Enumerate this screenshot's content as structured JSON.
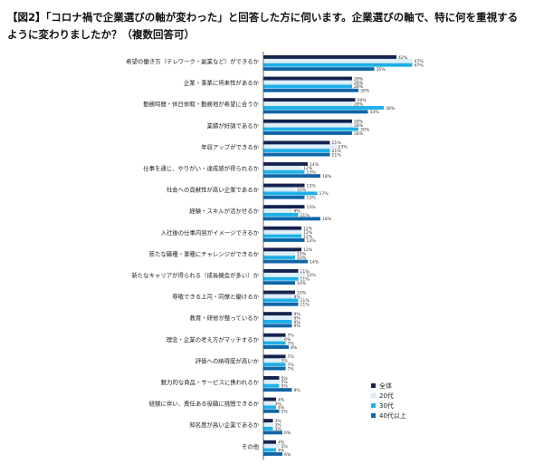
{
  "title": "【図2】「コロナ禍で企業選びの軸が変わった」と回答した方に伺います。企業選びの軸で、特に何を重視するように変わりましたか？（複数回答可）",
  "colors": {
    "全体": "#16234f",
    "20代": "#dff0fa",
    "30代": "#1fb0e8",
    "40代以上": "#0f66a8"
  },
  "chart_data": {
    "type": "bar",
    "orientation": "horizontal",
    "categories": [
      "希望の働き方（テレワーク・副業など）ができるか",
      "企業・事業に将来性があるか",
      "勤務時間・休日休暇・勤務地が希望に合うか",
      "業績が好調であるか",
      "年収アップができるか",
      "仕事を通じ、やりがい・達成感が得られるか",
      "社会への貢献性が高い企業であるか",
      "経験・スキルが活かせるか",
      "入社後の仕事内容がイメージできるか",
      "新たな職種・業種にチャレンジができるか",
      "新たなキャリアが得られる（成長機会が多い）か",
      "尊敬できる上司・同僚と働けるか",
      "教育・研修が整っているか",
      "理念・企業の考え方がマッチするか",
      "評価への納得度が高いか",
      "魅力的な商品・サービスに携われるか",
      "経験に伴い、責任ある役職に挑戦できるか",
      "知名度が高い企業であるか",
      "その他"
    ],
    "series": [
      {
        "name": "全体",
        "values": [
          42,
          28,
          29,
          28,
          21,
          14,
          13,
          13,
          12,
          12,
          11,
          10,
          9,
          7,
          7,
          5,
          4,
          3,
          4
        ]
      },
      {
        "name": "20代",
        "values": [
          47,
          28,
          28,
          28,
          23,
          12,
          10,
          9,
          12,
          10,
          13,
          9,
          9,
          6,
          5,
          5,
          3,
          3,
          5
        ]
      },
      {
        "name": "30代",
        "values": [
          47,
          28,
          38,
          30,
          21,
          13,
          17,
          11,
          12,
          10,
          11,
          11,
          9,
          7,
          7,
          5,
          4,
          3,
          4
        ]
      },
      {
        "name": "40代以上",
        "values": [
          35,
          30,
          33,
          28,
          21,
          18,
          13,
          18,
          13,
          14,
          10,
          11,
          9,
          8,
          7,
          9,
          5,
          6,
          6
        ]
      }
    ],
    "value_unit": "%",
    "xlim": [
      0,
      50
    ],
    "grid": false,
    "legend_position": "bottom-right"
  }
}
